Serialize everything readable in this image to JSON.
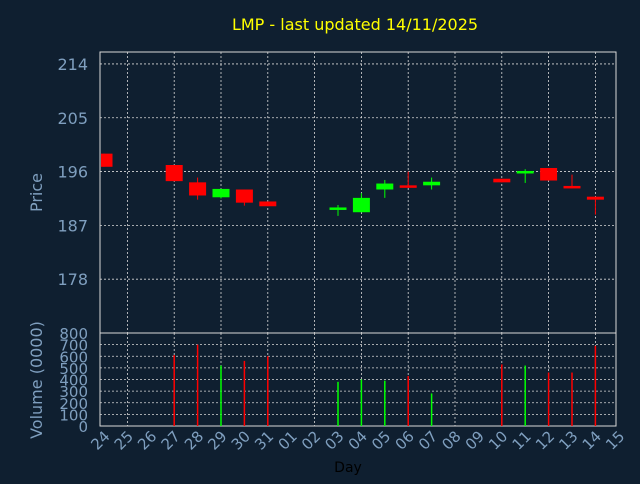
{
  "chart_data": [
    {
      "type": "candlestick",
      "title": "LMP - last updated 14/11/2025",
      "ylabel": "Price",
      "ylim": [
        169,
        216
      ],
      "yticks": [
        178,
        187,
        196,
        205,
        214
      ],
      "grid": true,
      "categories": [
        "24",
        "25",
        "26",
        "27",
        "28",
        "29",
        "30",
        "31",
        "01",
        "02",
        "03",
        "04",
        "05",
        "06",
        "07",
        "08",
        "09",
        "10",
        "11",
        "12",
        "13",
        "14",
        "15"
      ],
      "series": [
        {
          "x": "24",
          "open": 199.0,
          "high": 199.0,
          "low": 196.8,
          "close": 196.8
        },
        {
          "x": "27",
          "open": 197.1,
          "high": 197.1,
          "low": 194.4,
          "close": 194.4
        },
        {
          "x": "28",
          "open": 194.2,
          "high": 195.0,
          "low": 191.3,
          "close": 192.0
        },
        {
          "x": "29",
          "open": 191.7,
          "high": 193.1,
          "low": 191.5,
          "close": 193.1
        },
        {
          "x": "30",
          "open": 193.0,
          "high": 193.0,
          "low": 190.3,
          "close": 190.8
        },
        {
          "x": "31",
          "open": 191.0,
          "high": 191.0,
          "low": 190.2,
          "close": 190.2
        },
        {
          "x": "03",
          "open": 189.6,
          "high": 190.4,
          "low": 188.6,
          "close": 190.0
        },
        {
          "x": "04",
          "open": 189.2,
          "high": 192.4,
          "low": 189.2,
          "close": 191.6
        },
        {
          "x": "05",
          "open": 193.0,
          "high": 194.6,
          "low": 191.6,
          "close": 194.0
        },
        {
          "x": "06",
          "open": 193.7,
          "high": 196.0,
          "low": 193.3,
          "close": 193.3
        },
        {
          "x": "07",
          "open": 193.7,
          "high": 195.0,
          "low": 193.0,
          "close": 194.3
        },
        {
          "x": "10",
          "open": 194.8,
          "high": 194.8,
          "low": 194.2,
          "close": 194.2
        },
        {
          "x": "11",
          "open": 195.8,
          "high": 196.4,
          "low": 194.1,
          "close": 196.1
        },
        {
          "x": "12",
          "open": 196.6,
          "high": 196.6,
          "low": 194.5,
          "close": 194.5
        },
        {
          "x": "13",
          "open": 193.6,
          "high": 195.5,
          "low": 193.2,
          "close": 193.2
        },
        {
          "x": "14",
          "open": 191.8,
          "high": 191.8,
          "low": 188.8,
          "close": 191.3
        }
      ]
    },
    {
      "type": "bar",
      "ylabel": "Volume (0000)",
      "xlabel": "Day",
      "ylim": [
        0,
        800
      ],
      "yticks": [
        0,
        100,
        200,
        300,
        400,
        500,
        600,
        700,
        800
      ],
      "grid": true,
      "categories": [
        "24",
        "25",
        "26",
        "27",
        "28",
        "29",
        "30",
        "31",
        "01",
        "02",
        "03",
        "04",
        "05",
        "06",
        "07",
        "08",
        "09",
        "10",
        "11",
        "12",
        "13",
        "14",
        "15"
      ],
      "series": [
        {
          "x": "27",
          "value": 610,
          "dir": "down"
        },
        {
          "x": "28",
          "value": 700,
          "dir": "down"
        },
        {
          "x": "29",
          "value": 520,
          "dir": "up"
        },
        {
          "x": "30",
          "value": 560,
          "dir": "down"
        },
        {
          "x": "31",
          "value": 600,
          "dir": "down"
        },
        {
          "x": "03",
          "value": 380,
          "dir": "up"
        },
        {
          "x": "04",
          "value": 400,
          "dir": "up"
        },
        {
          "x": "05",
          "value": 390,
          "dir": "up"
        },
        {
          "x": "06",
          "value": 430,
          "dir": "down"
        },
        {
          "x": "07",
          "value": 280,
          "dir": "up"
        },
        {
          "x": "10",
          "value": 530,
          "dir": "down"
        },
        {
          "x": "11",
          "value": 520,
          "dir": "up"
        },
        {
          "x": "12",
          "value": 460,
          "dir": "down"
        },
        {
          "x": "13",
          "value": 460,
          "dir": "down"
        },
        {
          "x": "14",
          "value": 690,
          "dir": "down"
        }
      ]
    }
  ],
  "colors": {
    "background": "#0f1f30",
    "title": "#ffff00",
    "axis_text": "#7f9fbf",
    "grid": "#d8d8d8",
    "up": "#00ff00",
    "down": "#ff0000"
  }
}
